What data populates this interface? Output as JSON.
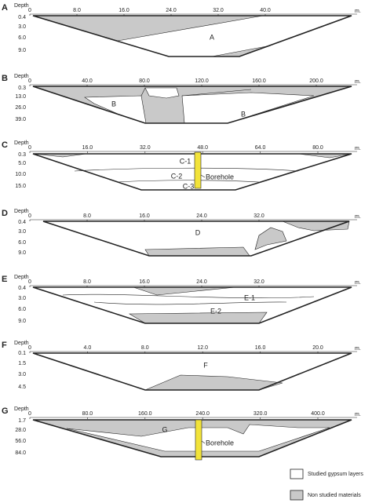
{
  "panels": [
    {
      "letter": "A",
      "depth_label": "Depth",
      "unit": "m.",
      "x_ticks": [
        "0",
        "8.0",
        "16.0",
        "24.0",
        "32.0",
        "40.0"
      ],
      "depth_ticks": [
        "0.4",
        "3.0",
        "6.0",
        "9.0"
      ],
      "labels": [
        "A"
      ]
    },
    {
      "letter": "B",
      "depth_label": "Depth",
      "unit": "m.",
      "x_ticks": [
        "0",
        "40.0",
        "80.0",
        "120.0",
        "160.0",
        "200.0"
      ],
      "depth_ticks": [
        "0.3",
        "13.0",
        "26.0",
        "39.0"
      ],
      "labels": [
        "B",
        "B"
      ]
    },
    {
      "letter": "C",
      "depth_label": "Depth",
      "unit": "m.",
      "x_ticks": [
        "0",
        "16.0",
        "32.0",
        "48.0",
        "64.0",
        "80.0"
      ],
      "depth_ticks": [
        "0.3",
        "5.0",
        "10.0",
        "15.0"
      ],
      "labels": [
        "C-1",
        "C-2",
        "C-3",
        "Borehole"
      ]
    },
    {
      "letter": "D",
      "depth_label": "Depth",
      "unit": "m.",
      "x_ticks": [
        "0",
        "8.0",
        "16.0",
        "24.0",
        "32.0"
      ],
      "depth_ticks": [
        "0.4",
        "3.0",
        "6.0",
        "9.0"
      ],
      "labels": [
        "D"
      ]
    },
    {
      "letter": "E",
      "depth_label": "Depth",
      "unit": "m.",
      "x_ticks": [
        "0",
        "8.0",
        "16.0",
        "24.0",
        "32.0"
      ],
      "depth_ticks": [
        "0.4",
        "3.0",
        "6.0",
        "9.0"
      ],
      "labels": [
        "E-1",
        "E-2"
      ]
    },
    {
      "letter": "F",
      "depth_label": "Depth",
      "unit": "m.",
      "x_ticks": [
        "0",
        "4.0",
        "8.0",
        "12.0",
        "16.0",
        "20.0"
      ],
      "depth_ticks": [
        "0.1",
        "1.5",
        "3.0",
        "4.5"
      ],
      "labels": [
        "F"
      ]
    },
    {
      "letter": "G",
      "depth_label": "Depth",
      "unit": "m.",
      "x_ticks": [
        "0",
        "80.0",
        "160.0",
        "240.0",
        "320.0",
        "400.0"
      ],
      "depth_ticks": [
        "1.7",
        "28.0",
        "56.0",
        "84.0"
      ],
      "labels": [
        "G",
        "Borehole"
      ]
    }
  ],
  "legend": [
    "Studied gypsum layers",
    "Non studied materials"
  ]
}
